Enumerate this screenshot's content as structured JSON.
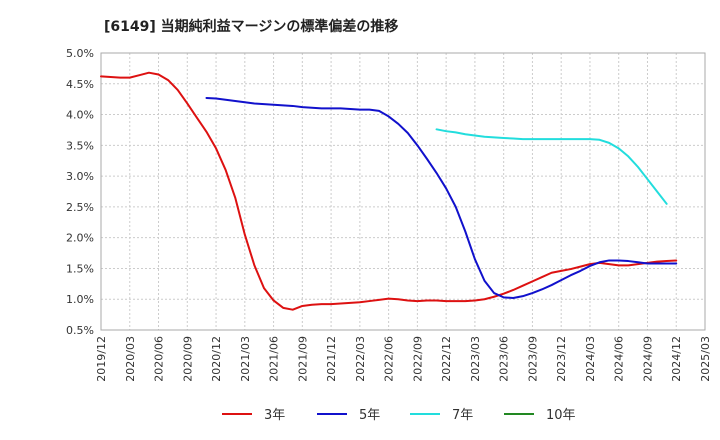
{
  "chart_data": {
    "type": "line",
    "title": "[6149]  当期純利益マージンの標準偏差の推移",
    "xlabel": "",
    "ylabel": "",
    "ylim": [
      0.5,
      5.0
    ],
    "grid": true,
    "legend_placement": "bottom",
    "y_ticks": [
      "0.5%",
      "1.0%",
      "1.5%",
      "2.0%",
      "2.5%",
      "3.0%",
      "3.5%",
      "4.0%",
      "4.5%",
      "5.0%"
    ],
    "x_ticks": [
      "2019/12",
      "2020/03",
      "2020/06",
      "2020/09",
      "2020/12",
      "2021/03",
      "2021/06",
      "2021/09",
      "2021/12",
      "2022/03",
      "2022/06",
      "2022/09",
      "2022/12",
      "2023/03",
      "2023/06",
      "2023/09",
      "2023/12",
      "2024/03",
      "2024/06",
      "2024/09",
      "2024/12",
      "2025/03"
    ],
    "series": [
      {
        "name": "3年",
        "color": "#dd1111",
        "points": [
          [
            "2019/12",
            4.62
          ],
          [
            "2020/01",
            4.61
          ],
          [
            "2020/02",
            4.6
          ],
          [
            "2020/03",
            4.6
          ],
          [
            "2020/04",
            4.64
          ],
          [
            "2020/05",
            4.68
          ],
          [
            "2020/06",
            4.65
          ],
          [
            "2020/07",
            4.56
          ],
          [
            "2020/08",
            4.4
          ],
          [
            "2020/09",
            4.18
          ],
          [
            "2020/10",
            3.95
          ],
          [
            "2020/11",
            3.72
          ],
          [
            "2020/12",
            3.45
          ],
          [
            "2021/01",
            3.1
          ],
          [
            "2021/02",
            2.65
          ],
          [
            "2021/03",
            2.05
          ],
          [
            "2021/04",
            1.55
          ],
          [
            "2021/05",
            1.18
          ],
          [
            "2021/06",
            0.98
          ],
          [
            "2021/07",
            0.86
          ],
          [
            "2021/08",
            0.83
          ],
          [
            "2021/09",
            0.89
          ],
          [
            "2021/10",
            0.91
          ],
          [
            "2021/11",
            0.92
          ],
          [
            "2021/12",
            0.92
          ],
          [
            "2022/01",
            0.93
          ],
          [
            "2022/02",
            0.94
          ],
          [
            "2022/03",
            0.95
          ],
          [
            "2022/04",
            0.97
          ],
          [
            "2022/05",
            0.99
          ],
          [
            "2022/06",
            1.01
          ],
          [
            "2022/07",
            1.0
          ],
          [
            "2022/08",
            0.98
          ],
          [
            "2022/09",
            0.97
          ],
          [
            "2022/10",
            0.98
          ],
          [
            "2022/11",
            0.98
          ],
          [
            "2022/12",
            0.97
          ],
          [
            "2023/01",
            0.97
          ],
          [
            "2023/02",
            0.97
          ],
          [
            "2023/03",
            0.98
          ],
          [
            "2023/04",
            1.0
          ],
          [
            "2023/05",
            1.04
          ],
          [
            "2023/06",
            1.09
          ],
          [
            "2023/07",
            1.15
          ],
          [
            "2023/08",
            1.22
          ],
          [
            "2023/09",
            1.29
          ],
          [
            "2023/10",
            1.36
          ],
          [
            "2023/11",
            1.43
          ],
          [
            "2023/12",
            1.46
          ],
          [
            "2024/01",
            1.49
          ],
          [
            "2024/02",
            1.53
          ],
          [
            "2024/03",
            1.57
          ],
          [
            "2024/04",
            1.59
          ],
          [
            "2024/05",
            1.57
          ],
          [
            "2024/06",
            1.55
          ],
          [
            "2024/07",
            1.55
          ],
          [
            "2024/08",
            1.57
          ],
          [
            "2024/09",
            1.59
          ],
          [
            "2024/10",
            1.61
          ],
          [
            "2024/11",
            1.62
          ],
          [
            "2024/12",
            1.63
          ]
        ]
      },
      {
        "name": "5年",
        "color": "#1111cc",
        "points": [
          [
            "2020/11",
            4.27
          ],
          [
            "2020/12",
            4.26
          ],
          [
            "2021/01",
            4.24
          ],
          [
            "2021/02",
            4.22
          ],
          [
            "2021/03",
            4.2
          ],
          [
            "2021/04",
            4.18
          ],
          [
            "2021/05",
            4.17
          ],
          [
            "2021/06",
            4.16
          ],
          [
            "2021/07",
            4.15
          ],
          [
            "2021/08",
            4.14
          ],
          [
            "2021/09",
            4.12
          ],
          [
            "2021/10",
            4.11
          ],
          [
            "2021/11",
            4.1
          ],
          [
            "2021/12",
            4.1
          ],
          [
            "2022/01",
            4.1
          ],
          [
            "2022/02",
            4.09
          ],
          [
            "2022/03",
            4.08
          ],
          [
            "2022/04",
            4.08
          ],
          [
            "2022/05",
            4.06
          ],
          [
            "2022/06",
            3.97
          ],
          [
            "2022/07",
            3.85
          ],
          [
            "2022/08",
            3.7
          ],
          [
            "2022/09",
            3.5
          ],
          [
            "2022/10",
            3.28
          ],
          [
            "2022/11",
            3.05
          ],
          [
            "2022/12",
            2.8
          ],
          [
            "2023/01",
            2.5
          ],
          [
            "2023/02",
            2.1
          ],
          [
            "2023/03",
            1.65
          ],
          [
            "2023/04",
            1.3
          ],
          [
            "2023/05",
            1.1
          ],
          [
            "2023/06",
            1.03
          ],
          [
            "2023/07",
            1.02
          ],
          [
            "2023/08",
            1.05
          ],
          [
            "2023/09",
            1.1
          ],
          [
            "2023/10",
            1.16
          ],
          [
            "2023/11",
            1.23
          ],
          [
            "2023/12",
            1.31
          ],
          [
            "2024/01",
            1.39
          ],
          [
            "2024/02",
            1.46
          ],
          [
            "2024/03",
            1.54
          ],
          [
            "2024/04",
            1.6
          ],
          [
            "2024/05",
            1.63
          ],
          [
            "2024/06",
            1.63
          ],
          [
            "2024/07",
            1.62
          ],
          [
            "2024/08",
            1.6
          ],
          [
            "2024/09",
            1.58
          ],
          [
            "2024/10",
            1.58
          ],
          [
            "2024/11",
            1.58
          ],
          [
            "2024/12",
            1.58
          ]
        ]
      },
      {
        "name": "7年",
        "color": "#22dddd",
        "points": [
          [
            "2022/11",
            3.76
          ],
          [
            "2022/12",
            3.73
          ],
          [
            "2023/01",
            3.71
          ],
          [
            "2023/02",
            3.68
          ],
          [
            "2023/03",
            3.66
          ],
          [
            "2023/04",
            3.64
          ],
          [
            "2023/05",
            3.63
          ],
          [
            "2023/06",
            3.62
          ],
          [
            "2023/07",
            3.61
          ],
          [
            "2023/08",
            3.6
          ],
          [
            "2023/09",
            3.6
          ],
          [
            "2023/10",
            3.6
          ],
          [
            "2023/11",
            3.6
          ],
          [
            "2023/12",
            3.6
          ],
          [
            "2024/01",
            3.6
          ],
          [
            "2024/02",
            3.6
          ],
          [
            "2024/03",
            3.6
          ],
          [
            "2024/04",
            3.59
          ],
          [
            "2024/05",
            3.54
          ],
          [
            "2024/06",
            3.45
          ],
          [
            "2024/07",
            3.32
          ],
          [
            "2024/08",
            3.15
          ],
          [
            "2024/09",
            2.95
          ],
          [
            "2024/10",
            2.75
          ],
          [
            "2024/11",
            2.55
          ]
        ]
      },
      {
        "name": "10年",
        "color": "#228822",
        "points": []
      }
    ]
  }
}
